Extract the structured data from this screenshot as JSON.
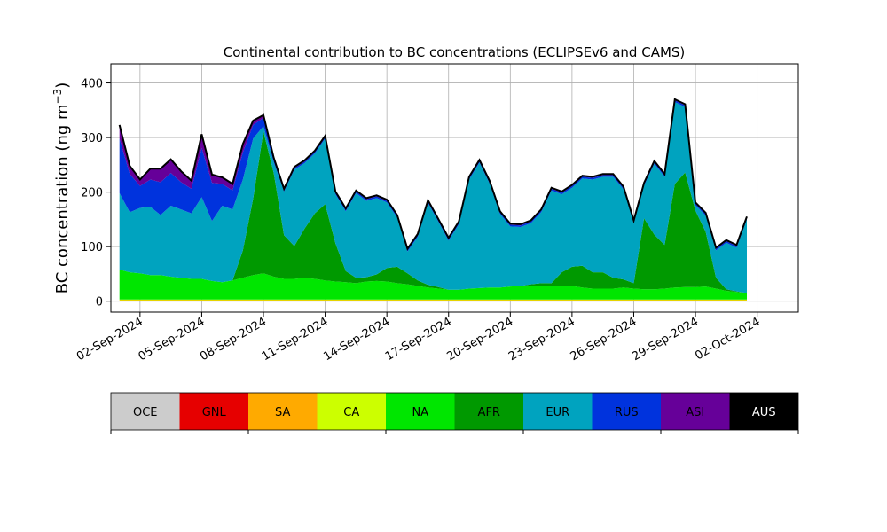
{
  "chart_data": {
    "type": "area",
    "title": "Continental contribution to BC concentrations (ECLIPSEv6 and CAMS)",
    "ylabel_main": "BC concentration (ng m",
    "ylabel_sup": "−3",
    "ylabel_close": ")",
    "xlabel": "",
    "ylim": [
      -20,
      435
    ],
    "xlim": [
      "2024-08-31T14:00",
      "2024-10-04T00:00"
    ],
    "grid": true,
    "stacked": true,
    "y_ticks": [
      0,
      100,
      200,
      300,
      400
    ],
    "x_ticks": [
      {
        "date": "2024-09-02",
        "label": "02-Sep-2024"
      },
      {
        "date": "2024-09-05",
        "label": "05-Sep-2024"
      },
      {
        "date": "2024-09-08",
        "label": "08-Sep-2024"
      },
      {
        "date": "2024-09-11",
        "label": "11-Sep-2024"
      },
      {
        "date": "2024-09-14",
        "label": "14-Sep-2024"
      },
      {
        "date": "2024-09-17",
        "label": "17-Sep-2024"
      },
      {
        "date": "2024-09-20",
        "label": "20-Sep-2024"
      },
      {
        "date": "2024-09-23",
        "label": "23-Sep-2024"
      },
      {
        "date": "2024-09-26",
        "label": "26-Sep-2024"
      },
      {
        "date": "2024-09-29",
        "label": "29-Sep-2024"
      },
      {
        "date": "2024-10-02",
        "label": "02-Oct-2024"
      }
    ],
    "x": [
      "2024-09-01",
      "2024-09-01T12:00",
      "2024-09-02",
      "2024-09-02T12:00",
      "2024-09-03",
      "2024-09-03T12:00",
      "2024-09-04",
      "2024-09-04T12:00",
      "2024-09-05",
      "2024-09-05T12:00",
      "2024-09-06",
      "2024-09-06T12:00",
      "2024-09-07",
      "2024-09-07T12:00",
      "2024-09-08",
      "2024-09-08T12:00",
      "2024-09-09",
      "2024-09-09T12:00",
      "2024-09-10",
      "2024-09-10T12:00",
      "2024-09-11",
      "2024-09-11T12:00",
      "2024-09-12",
      "2024-09-12T12:00",
      "2024-09-13",
      "2024-09-13T12:00",
      "2024-09-14",
      "2024-09-14T12:00",
      "2024-09-15",
      "2024-09-15T12:00",
      "2024-09-16",
      "2024-09-16T12:00",
      "2024-09-17",
      "2024-09-17T12:00",
      "2024-09-18",
      "2024-09-18T12:00",
      "2024-09-19",
      "2024-09-19T12:00",
      "2024-09-20",
      "2024-09-20T12:00",
      "2024-09-21",
      "2024-09-21T12:00",
      "2024-09-22",
      "2024-09-22T12:00",
      "2024-09-23",
      "2024-09-23T12:00",
      "2024-09-24",
      "2024-09-24T12:00",
      "2024-09-25",
      "2024-09-25T12:00",
      "2024-09-26",
      "2024-09-26T12:00",
      "2024-09-27",
      "2024-09-27T12:00",
      "2024-09-28",
      "2024-09-28T12:00",
      "2024-09-29",
      "2024-09-29T12:00",
      "2024-09-30",
      "2024-09-30T12:00",
      "2024-10-01",
      "2024-10-01T12:00"
    ],
    "series": [
      {
        "name": "OCE",
        "color": "#cccccc",
        "values": [
          1,
          1,
          1,
          1,
          1,
          1,
          1,
          1,
          1,
          1,
          1,
          1,
          1,
          1,
          1,
          1,
          1,
          1,
          1,
          1,
          1,
          1,
          1,
          1,
          1,
          1,
          1,
          1,
          1,
          1,
          1,
          1,
          1,
          1,
          1,
          1,
          1,
          1,
          1,
          1,
          1,
          1,
          1,
          1,
          1,
          1,
          1,
          1,
          1,
          1,
          1,
          1,
          1,
          1,
          1,
          1,
          1,
          1,
          1,
          1,
          1,
          1
        ]
      },
      {
        "name": "GNL",
        "color": "#e60000",
        "values": [
          0,
          0,
          0,
          0,
          0,
          0,
          0,
          0,
          0,
          0,
          0,
          0,
          0,
          0,
          0,
          0,
          0,
          0,
          0,
          0,
          0,
          0,
          0,
          0,
          0,
          0,
          0,
          0,
          0,
          0,
          0,
          0,
          0,
          0,
          0,
          0,
          0,
          0,
          0,
          0,
          0,
          0,
          0,
          0,
          0,
          0,
          0,
          0,
          0,
          0,
          0,
          0,
          0,
          0,
          0,
          0,
          0,
          0,
          0,
          0,
          0,
          0
        ]
      },
      {
        "name": "SA",
        "color": "#ffaa00",
        "values": [
          1,
          1,
          1,
          1,
          1,
          1,
          1,
          1,
          1,
          1,
          1,
          1,
          1,
          1,
          1,
          1,
          1,
          1,
          1,
          1,
          1,
          1,
          1,
          1,
          1,
          1,
          1,
          1,
          1,
          1,
          1,
          1,
          1,
          1,
          1,
          1,
          1,
          1,
          1,
          1,
          1,
          1,
          1,
          1,
          1,
          1,
          1,
          1,
          1,
          1,
          1,
          1,
          1,
          1,
          1,
          1,
          1,
          1,
          1,
          1,
          1,
          1
        ]
      },
      {
        "name": "CA",
        "color": "#ccff00",
        "values": [
          1,
          1,
          1,
          1,
          1,
          1,
          1,
          1,
          1,
          1,
          1,
          1,
          1,
          1,
          1,
          1,
          1,
          1,
          1,
          1,
          1,
          1,
          1,
          1,
          1,
          1,
          1,
          1,
          1,
          1,
          1,
          1,
          1,
          1,
          1,
          1,
          1,
          1,
          1,
          1,
          1,
          1,
          1,
          1,
          1,
          1,
          1,
          1,
          1,
          1,
          1,
          1,
          1,
          1,
          1,
          1,
          1,
          1,
          1,
          1,
          1,
          1
        ]
      },
      {
        "name": "NA",
        "color": "#00e600",
        "values": [
          55,
          50,
          48,
          45,
          45,
          42,
          40,
          38,
          38,
          34,
          32,
          35,
          40,
          45,
          48,
          42,
          38,
          38,
          40,
          38,
          35,
          33,
          32,
          30,
          33,
          34,
          33,
          30,
          28,
          25,
          22,
          20,
          18,
          18,
          20,
          21,
          22,
          22,
          24,
          25,
          25,
          25,
          25,
          25,
          25,
          22,
          20,
          20,
          20,
          22,
          20,
          19,
          19,
          20,
          22,
          23,
          23,
          24,
          20,
          16,
          14,
          12
        ]
      },
      {
        "name": "AFR",
        "color": "#009900",
        "values": [
          0,
          0,
          0,
          0,
          0,
          0,
          0,
          0,
          0,
          0,
          0,
          0,
          50,
          140,
          260,
          190,
          80,
          60,
          90,
          120,
          140,
          70,
          20,
          10,
          8,
          12,
          25,
          30,
          20,
          10,
          5,
          3,
          0,
          0,
          0,
          0,
          0,
          0,
          0,
          0,
          3,
          5,
          5,
          25,
          35,
          40,
          30,
          30,
          20,
          15,
          10,
          130,
          100,
          80,
          190,
          210,
          140,
          100,
          20,
          3,
          1,
          0
        ]
      },
      {
        "name": "EUR",
        "color": "#00a3bf",
        "values": [
          140,
          110,
          120,
          125,
          110,
          130,
          125,
          120,
          150,
          110,
          140,
          130,
          130,
          110,
          10,
          20,
          80,
          140,
          120,
          110,
          120,
          90,
          110,
          155,
          140,
          140,
          120,
          90,
          40,
          80,
          150,
          120,
          90,
          120,
          200,
          230,
          190,
          135,
          110,
          108,
          112,
          130,
          170,
          143,
          145,
          160,
          170,
          175,
          185,
          165,
          110,
          60,
          130,
          125,
          150,
          120,
          10,
          30,
          50,
          85,
          80,
          135
        ]
      },
      {
        "name": "RUS",
        "color": "#0033dd",
        "values": [
          100,
          70,
          40,
          50,
          60,
          60,
          50,
          45,
          90,
          70,
          40,
          35,
          50,
          25,
          15,
          5,
          3,
          3,
          3,
          3,
          3,
          3,
          3,
          3,
          3,
          3,
          3,
          3,
          3,
          3,
          3,
          3,
          3,
          3,
          3,
          3,
          3,
          3,
          3,
          3,
          3,
          3,
          3,
          3,
          3,
          3,
          3,
          3,
          3,
          3,
          3,
          3,
          3,
          3,
          3,
          3,
          3,
          3,
          3,
          3,
          3,
          3
        ]
      },
      {
        "name": "ASI",
        "color": "#660099",
        "values": [
          25,
          15,
          12,
          20,
          25,
          25,
          20,
          15,
          25,
          15,
          12,
          12,
          15,
          8,
          5,
          3,
          2,
          2,
          2,
          2,
          2,
          2,
          2,
          2,
          2,
          2,
          2,
          2,
          2,
          2,
          2,
          2,
          2,
          2,
          2,
          2,
          2,
          2,
          2,
          2,
          2,
          2,
          2,
          2,
          2,
          2,
          2,
          2,
          2,
          2,
          2,
          2,
          2,
          2,
          2,
          2,
          2,
          2,
          2,
          2,
          2,
          2
        ]
      },
      {
        "name": "AUS",
        "color": "#000000",
        "values": [
          0,
          0,
          0,
          0,
          0,
          0,
          0,
          0,
          0,
          0,
          0,
          0,
          0,
          0,
          0,
          0,
          0,
          0,
          0,
          0,
          0,
          0,
          0,
          0,
          0,
          0,
          0,
          0,
          0,
          0,
          0,
          0,
          0,
          0,
          0,
          0,
          0,
          0,
          0,
          0,
          0,
          0,
          0,
          0,
          0,
          0,
          0,
          0,
          0,
          0,
          0,
          0,
          0,
          0,
          0,
          0,
          0,
          0,
          0,
          0,
          0,
          0
        ]
      }
    ],
    "legend_placement": "bottom-colorbar"
  }
}
